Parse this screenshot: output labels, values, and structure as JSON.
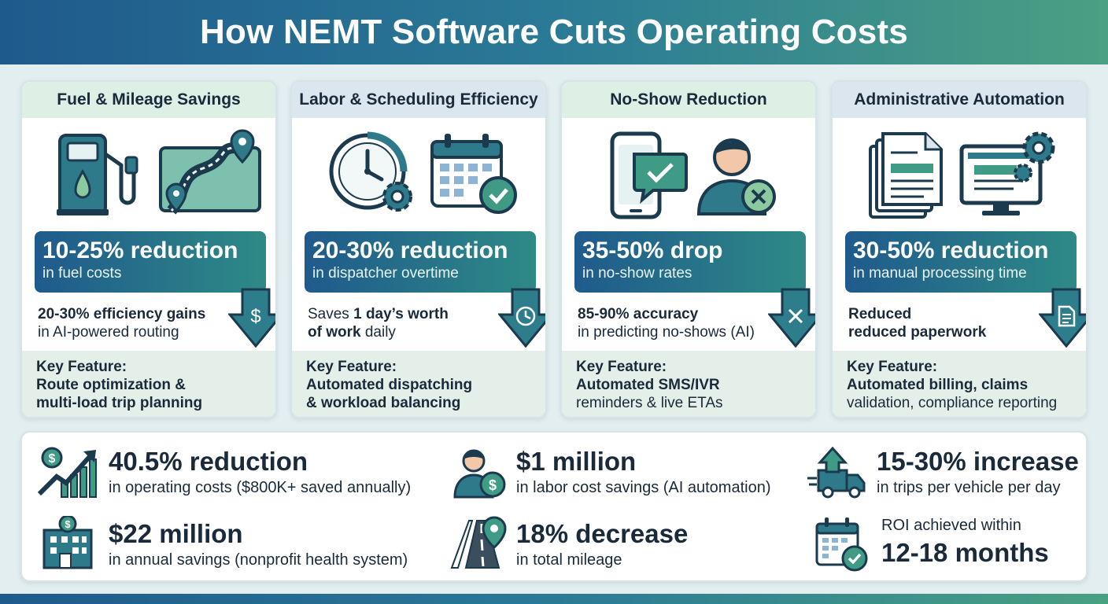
{
  "title": "How NEMT Software Cuts Operating Costs",
  "colors": {
    "navy": "#1f5a8c",
    "teal": "#2e8a86",
    "green": "#4aa082",
    "mint": "#deefe6"
  },
  "cards": [
    {
      "title": "Fuel & Mileage Savings",
      "icons": [
        "fuel-pump-icon",
        "route-map-icon"
      ],
      "stat_big": "10-25% reduction",
      "stat_small": "in fuel costs",
      "sub_bold": "20-30% efficiency gains",
      "sub_rest": "in AI-powered routing",
      "arrow_icon": "dollar-icon",
      "key_label": "Key Feature:",
      "key_line1": "Route optimization &",
      "key_line2": "multi-load trip planning"
    },
    {
      "title": "Labor & Scheduling Efficiency",
      "icons": [
        "clock-gear-icon",
        "calendar-check-icon"
      ],
      "stat_big": "20-30% reduction",
      "stat_small": "in dispatcher overtime",
      "sub_pre": "Saves ",
      "sub_bold": "1 day’s worth",
      "sub_bold2": "of work",
      "sub_rest": " daily",
      "arrow_icon": "clock-icon",
      "key_label": "Key Feature:",
      "key_line1": "Automated dispatching",
      "key_line2": "& workload balancing"
    },
    {
      "title": "No-Show Reduction",
      "icons": [
        "phone-message-icon",
        "person-cancel-icon"
      ],
      "stat_big": "35-50% drop",
      "stat_small": "in no-show rates",
      "sub_bold": "85-90% accuracy",
      "sub_rest": "in predicting no-shows (AI)",
      "arrow_icon": "x-icon",
      "key_label": "Key Feature:",
      "key_line1": "Automated SMS/IVR",
      "key_line2": "reminders & live ETAs"
    },
    {
      "title": "Administrative Automation",
      "icons": [
        "documents-icon",
        "monitor-gear-icon"
      ],
      "stat_big": "30-50% reduction",
      "stat_small": "in manual processing time",
      "sub_bold": "Reduced",
      "sub_bold2": "reduced paperwork",
      "arrow_icon": "document-icon",
      "key_label": "Key Feature:",
      "key_line1": "Automated billing, claims",
      "key_line2": "validation, compliance reporting"
    }
  ],
  "summary": [
    {
      "icon": "growth-chart-icon",
      "value": "40.5% reduction",
      "desc": "in operating costs ($800K+ saved annually)"
    },
    {
      "icon": "worker-dollar-icon",
      "value": "$1 million",
      "desc": "in labor cost savings (AI automation)"
    },
    {
      "icon": "truck-up-icon",
      "value": "15-30% increase",
      "desc": "in trips per vehicle per day"
    },
    {
      "icon": "hospital-icon",
      "value": "$22 million",
      "desc": "in annual savings (nonprofit health system)"
    },
    {
      "icon": "road-pin-icon",
      "value": "18% decrease",
      "desc": "in total mileage"
    },
    {
      "icon": "calendar-check-icon",
      "pre": "ROI achieved within",
      "value": "12-18 months"
    }
  ]
}
